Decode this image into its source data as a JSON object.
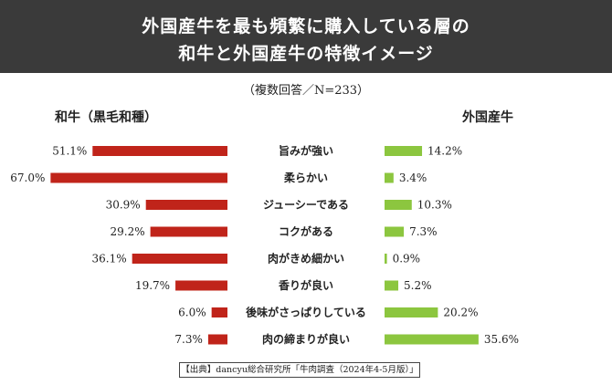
{
  "banner": {
    "line1": "外国産牛を最も頻繁に購入している層の",
    "line2": "和牛と外国産牛の特徴イメージ"
  },
  "subtitle": "（複数回答／N=233）",
  "left_header": "和牛（黒毛和種）",
  "right_header": "外国産牛",
  "source": "【出典】dancyu総合研究所「牛肉調査（2024年4-5月版）」",
  "colors": {
    "left_bar": "#c0241a",
    "right_bar": "#8cc63f",
    "banner": "#3a3a3a"
  },
  "chart_data": {
    "type": "bar",
    "categories": [
      "旨みが強い",
      "柔らかい",
      "ジューシーである",
      "コクがある",
      "肉がきめ細かい",
      "香りが良い",
      "後味がさっぱりしている",
      "肉の締まりが良い"
    ],
    "series": [
      {
        "name": "和牛（黒毛和種）",
        "values": [
          51.1,
          67.0,
          30.9,
          29.2,
          36.1,
          19.7,
          6.0,
          7.3
        ],
        "labels": [
          "51.1%",
          "67.0%",
          "30.9%",
          "29.2%",
          "36.1%",
          "19.7%",
          "6.0%",
          "7.3%"
        ]
      },
      {
        "name": "外国産牛",
        "values": [
          14.2,
          3.4,
          10.3,
          7.3,
          0.9,
          5.2,
          20.2,
          35.6
        ],
        "labels": [
          "14.2%",
          "3.4%",
          "10.3%",
          "7.3%",
          "0.9%",
          "5.2%",
          "20.2%",
          "35.6%"
        ]
      }
    ],
    "xlim": [
      0,
      70
    ]
  }
}
